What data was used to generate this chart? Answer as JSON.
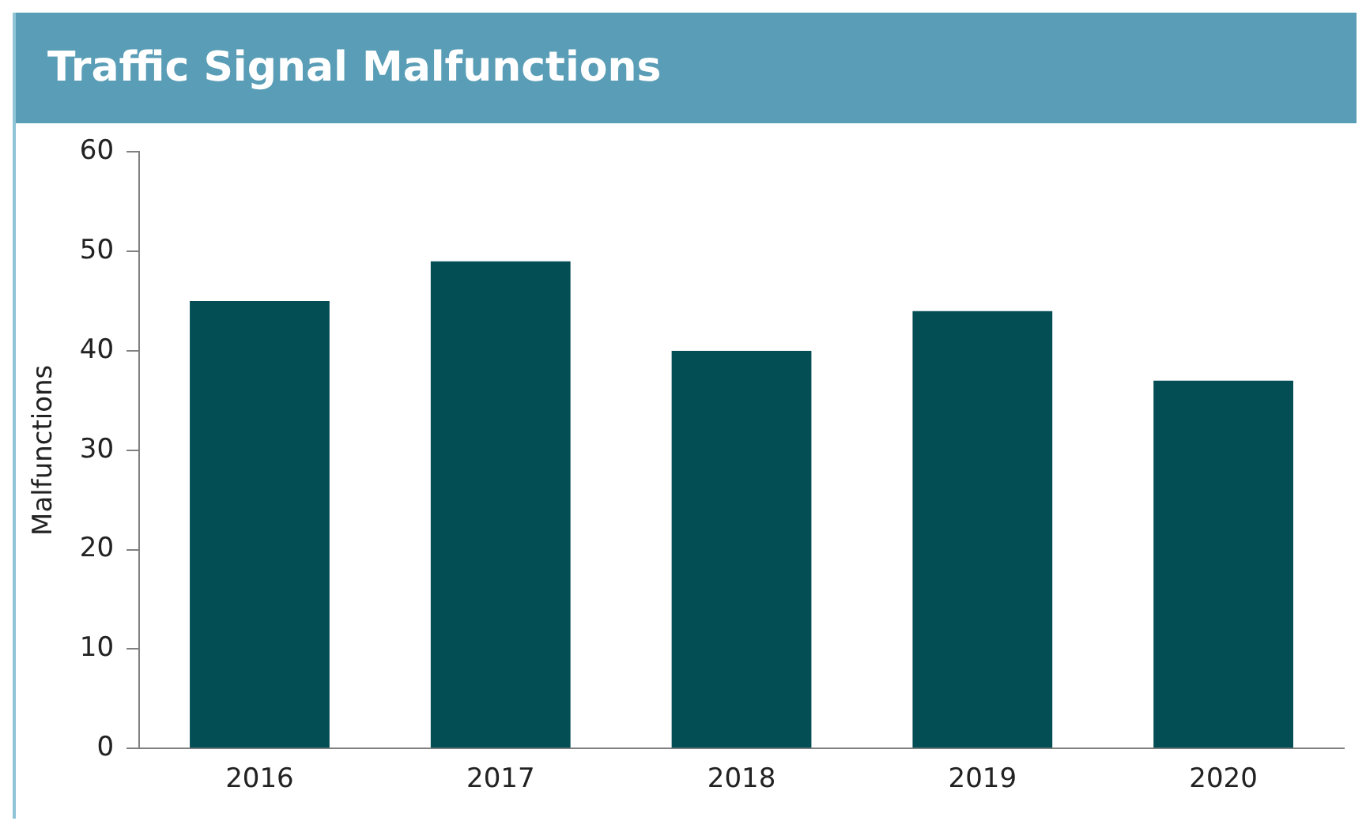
{
  "chart_data": {
    "type": "bar",
    "title": "Traffic Signal Malfunctions",
    "ylabel": "Malfunctions",
    "categories": [
      "2016",
      "2017",
      "2018",
      "2019",
      "2020"
    ],
    "values": [
      45,
      49,
      40,
      44,
      37
    ],
    "color": "#034d55",
    "ylim": [
      0,
      60
    ],
    "yticks": [
      0,
      10,
      20,
      30,
      40,
      50,
      60
    ],
    "grid": false,
    "legend": false
  }
}
